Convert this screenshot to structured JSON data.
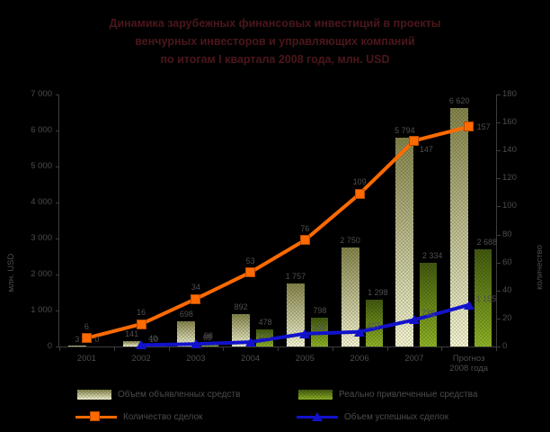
{
  "colors": {
    "background": "#000000",
    "title_color": "#4b161b",
    "label_color": "#4f4f4f",
    "axis_color": "#3c3c3c",
    "orange_line": "#ff6a00",
    "blue_line": "#1212cc",
    "khaki_bar_top": "#84844a",
    "khaki_bar_bottom": "#f6f6d4",
    "green_bar_top": "#42590f",
    "green_bar_bottom": "#8fb426"
  },
  "chart_data": {
    "type": "combo-bar-line",
    "title_lines": [
      "Динамика зарубежных финансовых инвестиций в проекты",
      "венчурных инвесторов и управляющих компаний",
      "по итогам I квартала 2008 года, млн. USD"
    ],
    "categories": [
      "2001",
      "2002",
      "2003",
      "2004",
      "2005",
      "2006",
      "2007",
      "Прогноз\n2008 года"
    ],
    "left_axis": {
      "title": "млн. USD",
      "min": 0,
      "max": 7000,
      "step": 1000,
      "ticks": [
        "0",
        "1 000",
        "2 000",
        "3 000",
        "4 000",
        "5 000",
        "6 000",
        "7 000"
      ]
    },
    "right_axis": {
      "title": "количество",
      "min": 0,
      "max": 180,
      "step": 20,
      "ticks": [
        "0",
        "20",
        "40",
        "60",
        "80",
        "100",
        "120",
        "140",
        "160",
        "180"
      ]
    },
    "grid": false,
    "legend_position": "bottom",
    "series": [
      {
        "name": "Объем объявленных средств",
        "type": "bar",
        "axis": "left",
        "swatch": "khaki",
        "values": [
          3,
          141,
          698,
          892,
          1757,
          2750,
          5794,
          6620
        ],
        "labels": [
          "3",
          "141",
          "698",
          "892",
          "1 757",
          "2 750",
          "5 794",
          "6 620"
        ]
      },
      {
        "name": "Реально привлеченные средства",
        "type": "bar",
        "axis": "left",
        "swatch": "green",
        "values": [
          0,
          10,
          98,
          478,
          798,
          1298,
          2334,
          2688
        ],
        "labels": [
          "0",
          "10",
          "98",
          "478",
          "798",
          "1 298",
          "2 334",
          "2 688"
        ]
      },
      {
        "name": "Количество сделок",
        "type": "line",
        "axis": "right",
        "marker": "square",
        "color": "#ff6a00",
        "values": [
          6,
          16,
          34,
          53,
          76,
          109,
          147,
          157
        ],
        "labels": [
          "6",
          "16",
          "34",
          "53",
          "76",
          "109",
          "147",
          "157"
        ]
      },
      {
        "name": "Объем успешных сделок",
        "type": "line",
        "axis": "left",
        "marker": "triangle",
        "color": "#1212cc",
        "values": [
          null,
          40,
          68,
          123,
          355,
          407,
          738,
          1155
        ],
        "labels": [
          null,
          "40",
          "68",
          "123",
          "355",
          "407",
          "738",
          "1 155"
        ]
      }
    ]
  }
}
